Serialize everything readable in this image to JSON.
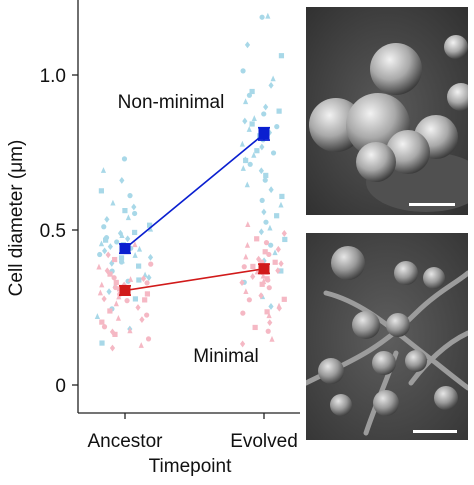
{
  "chart_data": {
    "type": "scatter",
    "xlabel": "Timepoint",
    "ylabel": "Cell diameter (μm)",
    "categories": [
      "Ancestor",
      "Evolved"
    ],
    "ylim": [
      -0.1,
      1.2
    ],
    "yticks": [
      {
        "value": 0,
        "label": "0"
      },
      {
        "value": 0.5,
        "label": "0.5"
      },
      {
        "value": 1.0,
        "label": "1.0"
      }
    ],
    "grid": false,
    "annotations": [
      {
        "text": "Non-minimal",
        "series": "non-minimal"
      },
      {
        "text": "Minimal",
        "series": "minimal"
      }
    ],
    "series": [
      {
        "key": "non-minimal",
        "color": "#0a1fd0",
        "point_color": "#a8d8e8",
        "means": [
          0.44,
          0.81
        ],
        "errors": [
          0.015,
          0.02
        ],
        "points": {
          "Ancestor": [
            0.73,
            0.69,
            0.66,
            0.63,
            0.61,
            0.59,
            0.57,
            0.56,
            0.55,
            0.54,
            0.53,
            0.52,
            0.51,
            0.5,
            0.49,
            0.49,
            0.48,
            0.48,
            0.47,
            0.47,
            0.46,
            0.46,
            0.45,
            0.45,
            0.44,
            0.44,
            0.43,
            0.43,
            0.42,
            0.42,
            0.41,
            0.41,
            0.4,
            0.4,
            0.39,
            0.38,
            0.37,
            0.36,
            0.35,
            0.34,
            0.33,
            0.32,
            0.3,
            0.28,
            0.25,
            0.22,
            0.18,
            0.14
          ],
          "Evolved": [
            1.19,
            1.19,
            1.1,
            1.06,
            1.01,
            0.99,
            0.97,
            0.95,
            0.93,
            0.91,
            0.9,
            0.88,
            0.87,
            0.86,
            0.85,
            0.84,
            0.83,
            0.82,
            0.81,
            0.8,
            0.79,
            0.78,
            0.77,
            0.76,
            0.75,
            0.74,
            0.73,
            0.72,
            0.71,
            0.7,
            0.69,
            0.68,
            0.66,
            0.65,
            0.63,
            0.61,
            0.6,
            0.58,
            0.56,
            0.55,
            0.53,
            0.51,
            0.49,
            0.47,
            0.45,
            0.43,
            0.4,
            0.37,
            0.33,
            0.29,
            0.25
          ]
        }
      },
      {
        "key": "minimal",
        "color": "#d11a1a",
        "point_color": "#f5b8c4",
        "means": [
          0.305,
          0.375
        ],
        "errors": [
          0.015,
          0.015
        ],
        "points": {
          "Ancestor": [
            0.45,
            0.42,
            0.4,
            0.39,
            0.38,
            0.37,
            0.36,
            0.35,
            0.34,
            0.34,
            0.33,
            0.33,
            0.32,
            0.32,
            0.31,
            0.31,
            0.3,
            0.3,
            0.29,
            0.29,
            0.28,
            0.28,
            0.27,
            0.27,
            0.26,
            0.25,
            0.24,
            0.23,
            0.22,
            0.21,
            0.2,
            0.19,
            0.18,
            0.17,
            0.16,
            0.15,
            0.13,
            0.12
          ],
          "Evolved": [
            0.52,
            0.49,
            0.47,
            0.46,
            0.45,
            0.44,
            0.43,
            0.42,
            0.41,
            0.41,
            0.4,
            0.4,
            0.39,
            0.39,
            0.38,
            0.38,
            0.37,
            0.37,
            0.36,
            0.36,
            0.35,
            0.35,
            0.34,
            0.34,
            0.33,
            0.33,
            0.32,
            0.31,
            0.3,
            0.29,
            0.28,
            0.27,
            0.26,
            0.25,
            0.24,
            0.23,
            0.22,
            0.2,
            0.19,
            0.17,
            0.15,
            0.13
          ]
        }
      }
    ]
  },
  "micrographs": [
    {
      "key": "non-minimal-cells",
      "description_icon": "sem-micrograph-icon"
    },
    {
      "key": "minimal-cells",
      "description_icon": "sem-micrograph-icon"
    }
  ]
}
